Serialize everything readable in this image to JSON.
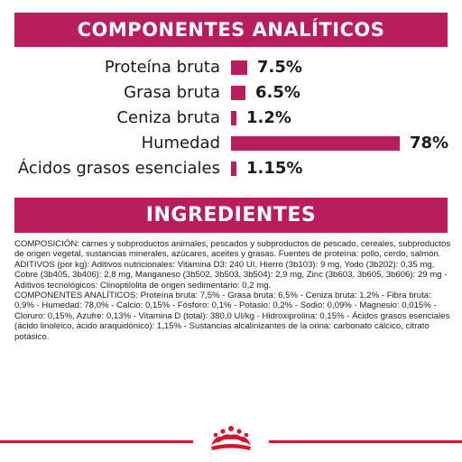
{
  "analytic_section": {
    "title": "COMPONENTES ANALÍTICOS",
    "rows": [
      {
        "label": "Proteína bruta",
        "value_label": "7.5%",
        "value": 7.5
      },
      {
        "label": "Grasa bruta",
        "value_label": "6.5%",
        "value": 6.5
      },
      {
        "label": "Ceniza bruta",
        "value_label": "1.2%",
        "value": 1.2
      },
      {
        "label": "Humedad",
        "value_label": "78%",
        "value": 78
      },
      {
        "label": "Ácidos grasos esenciales",
        "value_label": "1.15%",
        "value": 1.15
      }
    ],
    "accent_color": "#b81d5c"
  },
  "ingredients_section": {
    "title": "INGREDIENTES",
    "paragraphs": [
      "COMPOSICIÓN: carnes y subproductos animales, pescados y subproductos de pescado, cereales, subproductos de origen vegetal, sustancias minerales, azúcares, aceites y grasas. Fuentes de proteína: pollo, cerdo, salmón.",
      "ADITIVOS (por kg): Aditivos nutricionales: Vitamina D3: 240 UI, Hierro (3b103): 9 mg, Yodo (3b202): 0,35 mg, Cobre (3b405, 3b406): 2,8 mg, Manganeso (3b502, 3b503, 3b504): 2,9 mg, Zinc (3b603, 3b605, 3b606): 29 mg - Aditivos tecnológicos: Clinoptilolita de origen sedimentario: 0,2 mg.",
      "COMPONENTES ANALÍTICOS: Proteína bruta: 7,5% - Grasa bruta: 6,5% - Ceniza bruta: 1,2% - Fibra bruta: 0,9% - Humedad: 78,0% - Calcio: 0,15% - Fósforo: 0,1% - Potasio: 0,2% - Sodio: 0,09% - Magnesio: 0,015% - Cloruro: 0,15%, Azufre: 0,13% - Vitamina D (total): 380,0 UI/kg - Hidroxiprolina: 0,15% - Ácidos grasos esenciales (ácido linoleico, ácido araquidónico): 1,15% - Sustancias alcalinizantes de la orina: carbonato cálcico, citrato potásico."
    ]
  },
  "footer": {
    "logo_icon": "royal-canin-crown-icon",
    "line_color": "#d3172d"
  }
}
